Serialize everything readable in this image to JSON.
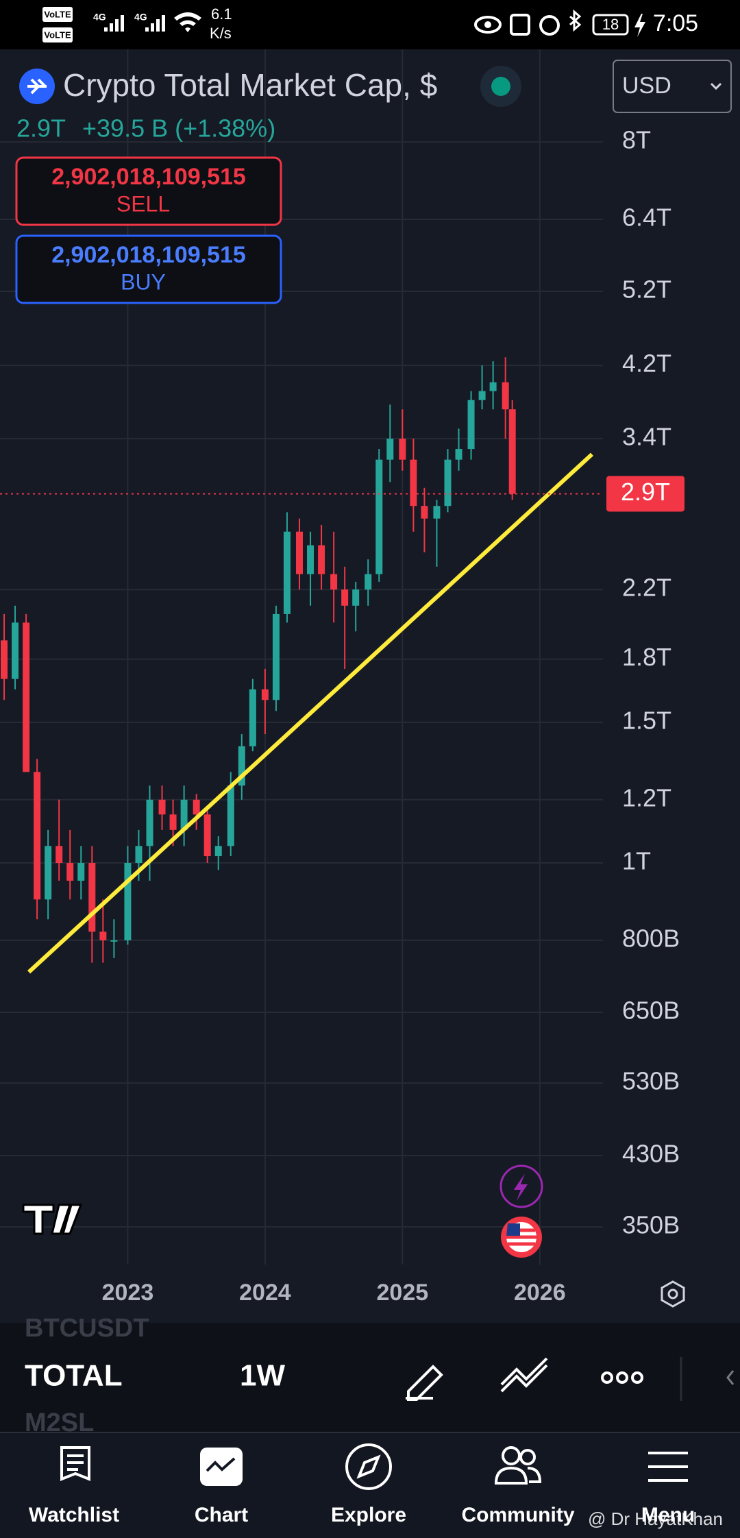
{
  "status_bar": {
    "sims": [
      "VoLTE",
      "4G",
      "VoLTE",
      "4G"
    ],
    "speed_value": "6.1",
    "speed_unit": "K/s",
    "battery": "18",
    "time": "7:05"
  },
  "header": {
    "symbol": "Crypto Total Market Cap, $",
    "currency": "USD",
    "last": "2.9T",
    "change": "+39.5 B (+1.38%)",
    "sell_price": "2,902,018,109,515",
    "sell": "SELL",
    "buy_price": "2,902,018,109,515",
    "buy": "BUY"
  },
  "chart_data": {
    "type": "candlestick",
    "log_scale": true,
    "grid": true,
    "up_color": "#26a69a",
    "down_color": "#f23645",
    "xlim": [
      2022.07,
      2026.46
    ],
    "xticks": [
      2023,
      2024,
      2025,
      2026
    ],
    "ylim": [
      314000000000.0,
      10450000000000.0
    ],
    "yticks": [
      {
        "value": 8000000000000.0,
        "label": "8T"
      },
      {
        "value": 6400000000000.0,
        "label": "6.4T"
      },
      {
        "value": 5200000000000.0,
        "label": "5.2T"
      },
      {
        "value": 4200000000000.0,
        "label": "4.2T"
      },
      {
        "value": 3400000000000.0,
        "label": "3.4T"
      },
      {
        "value": 2200000000000.0,
        "label": "2.2T"
      },
      {
        "value": 1800000000000.0,
        "label": "1.8T"
      },
      {
        "value": 1500000000000.0,
        "label": "1.5T"
      },
      {
        "value": 1200000000000.0,
        "label": "1.2T"
      },
      {
        "value": 1000000000000.0,
        "label": "1T"
      },
      {
        "value": 800000000000.0,
        "label": "800B"
      },
      {
        "value": 650000000000.0,
        "label": "650B"
      },
      {
        "value": 530000000000.0,
        "label": "530B"
      },
      {
        "value": 430000000000.0,
        "label": "430B"
      },
      {
        "value": 350000000000.0,
        "label": "350B"
      }
    ],
    "x": [
      2022.1,
      2022.18,
      2022.26,
      2022.34,
      2022.42,
      2022.5,
      2022.58,
      2022.66,
      2022.74,
      2022.82,
      2022.9,
      2023.0,
      2023.08,
      2023.16,
      2023.25,
      2023.33,
      2023.41,
      2023.5,
      2023.58,
      2023.66,
      2023.75,
      2023.83,
      2023.91,
      2024.0,
      2024.08,
      2024.16,
      2024.25,
      2024.33,
      2024.41,
      2024.5,
      2024.58,
      2024.66,
      2024.75,
      2024.83,
      2024.91,
      2025.0,
      2025.08,
      2025.16,
      2025.25,
      2025.33,
      2025.41,
      2025.5,
      2025.58,
      2025.66,
      2025.75,
      2025.8
    ],
    "open": [
      1900000000000.0,
      1700000000000.0,
      2000000000000.0,
      1300000000000.0,
      900000000000.0,
      1050000000000.0,
      1000000000000.0,
      950000000000.0,
      1000000000000.0,
      820000000000.0,
      800000000000.0,
      800000000000.0,
      1000000000000.0,
      1050000000000.0,
      1200000000000.0,
      1150000000000.0,
      1100000000000.0,
      1200000000000.0,
      1150000000000.0,
      1020000000000.0,
      1050000000000.0,
      1250000000000.0,
      1400000000000.0,
      1650000000000.0,
      1600000000000.0,
      2050000000000.0,
      2600000000000.0,
      2300000000000.0,
      2500000000000.0,
      2300000000000.0,
      2200000000000.0,
      2100000000000.0,
      2200000000000.0,
      2300000000000.0,
      3200000000000.0,
      3400000000000.0,
      3200000000000.0,
      2800000000000.0,
      2700000000000.0,
      2800000000000.0,
      3200000000000.0,
      3300000000000.0,
      3800000000000.0,
      3900000000000.0,
      4000000000000.0,
      3700000000000.0
    ],
    "high": [
      2050000000000.0,
      2100000000000.0,
      2050000000000.0,
      1350000000000.0,
      1100000000000.0,
      1200000000000.0,
      1100000000000.0,
      1050000000000.0,
      1050000000000.0,
      900000000000.0,
      850000000000.0,
      1050000000000.0,
      1100000000000.0,
      1250000000000.0,
      1250000000000.0,
      1200000000000.0,
      1250000000000.0,
      1220000000000.0,
      1180000000000.0,
      1080000000000.0,
      1300000000000.0,
      1450000000000.0,
      1700000000000.0,
      1750000000000.0,
      2100000000000.0,
      2750000000000.0,
      2700000000000.0,
      2600000000000.0,
      2650000000000.0,
      2600000000000.0,
      2350000000000.0,
      2250000000000.0,
      2400000000000.0,
      3300000000000.0,
      3750000000000.0,
      3700000000000.0,
      3400000000000.0,
      2950000000000.0,
      2850000000000.0,
      3300000000000.0,
      3500000000000.0,
      3900000000000.0,
      4200000000000.0,
      4250000000000.0,
      4300000000000.0,
      3800000000000.0
    ],
    "low": [
      1600000000000.0,
      1650000000000.0,
      1300000000000.0,
      850000000000.0,
      850000000000.0,
      950000000000.0,
      900000000000.0,
      900000000000.0,
      750000000000.0,
      750000000000.0,
      760000000000.0,
      790000000000.0,
      950000000000.0,
      950000000000.0,
      1100000000000.0,
      1050000000000.0,
      1050000000000.0,
      1100000000000.0,
      1000000000000.0,
      980000000000.0,
      1020000000000.0,
      1200000000000.0,
      1380000000000.0,
      1450000000000.0,
      1550000000000.0,
      2000000000000.0,
      2200000000000.0,
      2100000000000.0,
      2200000000000.0,
      2000000000000.0,
      1750000000000.0,
      1950000000000.0,
      2100000000000.0,
      2250000000000.0,
      3000000000000.0,
      3100000000000.0,
      2600000000000.0,
      2450000000000.0,
      2350000000000.0,
      2750000000000.0,
      3100000000000.0,
      3200000000000.0,
      3700000000000.0,
      3700000000000.0,
      3400000000000.0,
      2850000000000.0
    ],
    "close": [
      1700000000000.0,
      2000000000000.0,
      1300000000000.0,
      900000000000.0,
      1050000000000.0,
      1000000000000.0,
      950000000000.0,
      1000000000000.0,
      820000000000.0,
      800000000000.0,
      800000000000.0,
      1000000000000.0,
      1050000000000.0,
      1200000000000.0,
      1150000000000.0,
      1100000000000.0,
      1200000000000.0,
      1150000000000.0,
      1020000000000.0,
      1050000000000.0,
      1250000000000.0,
      1400000000000.0,
      1650000000000.0,
      1600000000000.0,
      2050000000000.0,
      2600000000000.0,
      2300000000000.0,
      2500000000000.0,
      2300000000000.0,
      2200000000000.0,
      2100000000000.0,
      2200000000000.0,
      2300000000000.0,
      3200000000000.0,
      3400000000000.0,
      3200000000000.0,
      2800000000000.0,
      2700000000000.0,
      2800000000000.0,
      3200000000000.0,
      3300000000000.0,
      3800000000000.0,
      3900000000000.0,
      4000000000000.0,
      3700000000000.0,
      2900000000000.0
    ],
    "trend_line": {
      "x": [
        2022.28,
        2026.38
      ],
      "y": [
        730000000000.0,
        3250000000000.0
      ],
      "color": "#ffeb3b"
    },
    "current_price": {
      "value": 2900000000000.0,
      "label": "2.9T",
      "color": "#f23645"
    }
  },
  "toolbar": {
    "prev_symbol": "BTCUSDT",
    "symbol": "TOTAL",
    "interval": "1W",
    "next_symbol": "M2SL"
  },
  "nav": {
    "items": [
      "Watchlist",
      "Chart",
      "Explore",
      "Community",
      "Menu"
    ],
    "watermark": "@ Dr HayatKhan"
  }
}
